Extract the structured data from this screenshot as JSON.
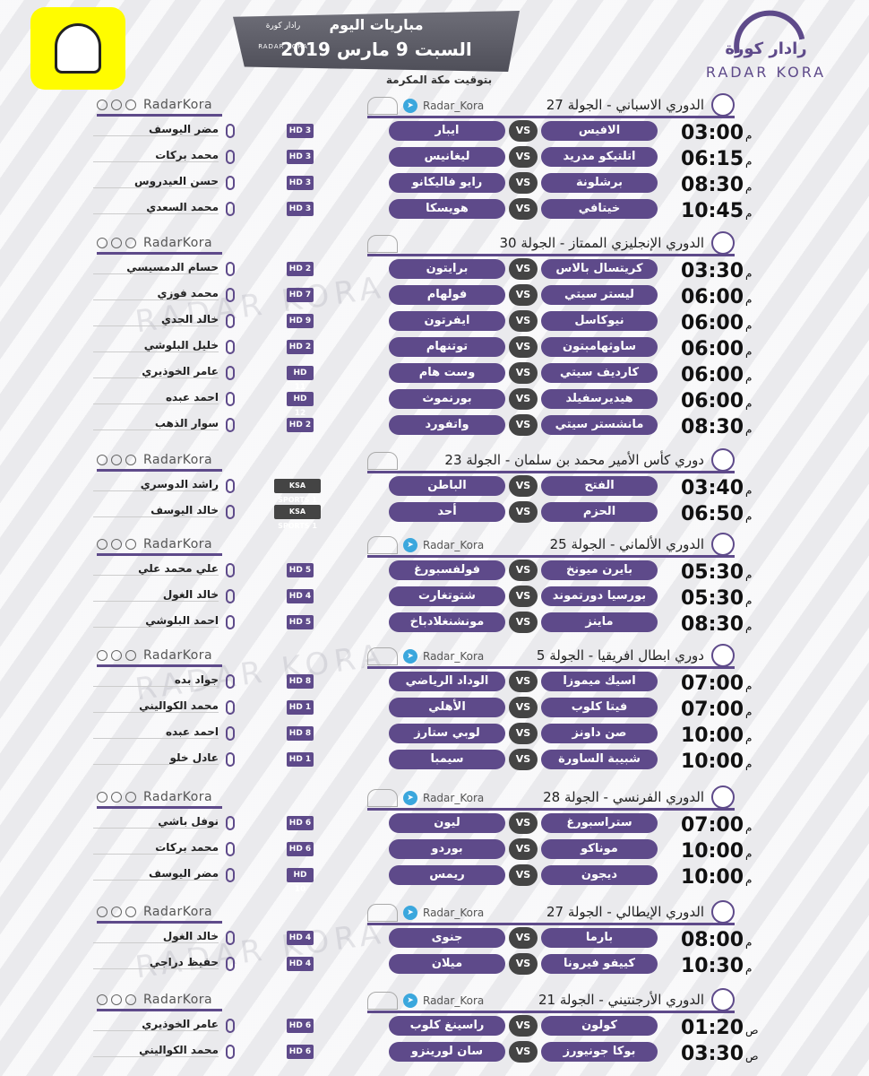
{
  "header": {
    "title": "مباريات اليوم",
    "date": "السبت 9 مارس 2019",
    "timezone": "بتوقيت مكة المكرمة",
    "brand_ar": "رادار كورة",
    "brand_en": "RADAR KORA",
    "banner_logo_ar": "رادار كورة",
    "banner_logo_en": "RADAR KORA"
  },
  "watermark": "RADAR KORA",
  "social_handle": "RadarKora",
  "sections": [
    {
      "league": "الدوري الاسباني - الجولة 27",
      "tag": "Radar_Kora",
      "matches": [
        {
          "time": "03:00",
          "suffix": "م",
          "home": "الافيس",
          "away": "ايبار",
          "channel": "HD 3",
          "commentator": "مضر اليوسف"
        },
        {
          "time": "06:15",
          "suffix": "م",
          "home": "اتلتيكو مدريد",
          "away": "ليغانيس",
          "channel": "HD 3",
          "commentator": "محمد بركات"
        },
        {
          "time": "08:30",
          "suffix": "م",
          "home": "برشلونة",
          "away": "رايو فاليكانو",
          "channel": "HD 3",
          "commentator": "حسن العيدروس"
        },
        {
          "time": "10:45",
          "suffix": "م",
          "home": "خيتافي",
          "away": "هويسكا",
          "channel": "HD 3",
          "commentator": "محمد السعدي"
        }
      ]
    },
    {
      "league": "الدوري الإنجليزي الممتاز - الجولة 30",
      "tag": "",
      "matches": [
        {
          "time": "03:30",
          "suffix": "م",
          "home": "كريتسال بالاس",
          "away": "برايتون",
          "channel": "HD 2",
          "commentator": "حسام الدمسيسي"
        },
        {
          "time": "06:00",
          "suffix": "م",
          "home": "ليستر سيتي",
          "away": "فولهام",
          "channel": "HD 7",
          "commentator": "محمد فوزي"
        },
        {
          "time": "06:00",
          "suffix": "م",
          "home": "نيوكاسل",
          "away": "ايفرتون",
          "channel": "HD 9",
          "commentator": "خالد الحدي"
        },
        {
          "time": "06:00",
          "suffix": "م",
          "home": "ساوثهامبتون",
          "away": "توتنهام",
          "channel": "HD 2",
          "commentator": "خليل البلوشي"
        },
        {
          "time": "06:00",
          "suffix": "م",
          "home": "كارديف سيتي",
          "away": "وست هام",
          "channel": "HD 11",
          "commentator": "عامر الخوذيري"
        },
        {
          "time": "06:00",
          "suffix": "م",
          "home": "هيديرسفيلد",
          "away": "بورنموث",
          "channel": "HD 12",
          "commentator": "احمد عبده"
        },
        {
          "time": "08:30",
          "suffix": "م",
          "home": "مانشستر سيتي",
          "away": "واتفورد",
          "channel": "HD 2",
          "commentator": "سوار الذهب"
        }
      ]
    },
    {
      "league": "دوري كأس الأمير محمد بن سلمان - الجولة 23",
      "tag": "",
      "matches": [
        {
          "time": "03:40",
          "suffix": "م",
          "home": "الفتح",
          "away": "الباطن",
          "channel": "KSA SPORTS 1",
          "commentator": "راشد الدوسري"
        },
        {
          "time": "06:50",
          "suffix": "م",
          "home": "الحزم",
          "away": "أحد",
          "channel": "KSA SPORTS 1",
          "commentator": "خالد اليوسف"
        }
      ]
    },
    {
      "league": "الدوري الألماني - الجولة 25",
      "tag": "Radar_Kora",
      "matches": [
        {
          "time": "05:30",
          "suffix": "م",
          "home": "بايرن ميونخ",
          "away": "فولفسبورغ",
          "channel": "HD 5",
          "commentator": "علي محمد علي"
        },
        {
          "time": "05:30",
          "suffix": "م",
          "home": "بورسيا دورتموند",
          "away": "شتوتغارت",
          "channel": "HD 4",
          "commentator": "خالد الغول"
        },
        {
          "time": "08:30",
          "suffix": "م",
          "home": "ماينز",
          "away": "مونشنغلادباخ",
          "channel": "HD 5",
          "commentator": "احمد البلوشي"
        }
      ]
    },
    {
      "league": "دوري ابطال افريقيا - الجولة 5",
      "tag": "Radar_Kora",
      "matches": [
        {
          "time": "07:00",
          "suffix": "م",
          "home": "اسيك ميموزا",
          "away": "الوداد الرياضي",
          "channel": "HD 8",
          "commentator": "جواد بده"
        },
        {
          "time": "07:00",
          "suffix": "م",
          "home": "فيتا كلوب",
          "away": "الأهلي",
          "channel": "HD 1",
          "commentator": "محمد الكواليني"
        },
        {
          "time": "10:00",
          "suffix": "م",
          "home": "صن داونز",
          "away": "لوبي ستارز",
          "channel": "HD 8",
          "commentator": "احمد عبده"
        },
        {
          "time": "10:00",
          "suffix": "م",
          "home": "شبيبة الساورة",
          "away": "سيمبا",
          "channel": "HD 1",
          "commentator": "عادل خلو"
        }
      ]
    },
    {
      "league": "الدوري الفرنسي - الجولة 28",
      "tag": "Radar_Kora",
      "matches": [
        {
          "time": "07:00",
          "suffix": "م",
          "home": "ستراسبورغ",
          "away": "ليون",
          "channel": "HD 6",
          "commentator": "نوفل باشي"
        },
        {
          "time": "10:00",
          "suffix": "م",
          "home": "موناكو",
          "away": "بوردو",
          "channel": "HD 6",
          "commentator": "محمد بركات"
        },
        {
          "time": "10:00",
          "suffix": "م",
          "home": "ديجون",
          "away": "ريمس",
          "channel": "HD 10",
          "commentator": "مضر اليوسف"
        }
      ]
    },
    {
      "league": "الدوري الإيطالي - الجولة 27",
      "tag": "Radar_Kora",
      "matches": [
        {
          "time": "08:00",
          "suffix": "م",
          "home": "بارما",
          "away": "جنوى",
          "channel": "HD 4",
          "commentator": "خالد الغول"
        },
        {
          "time": "10:30",
          "suffix": "م",
          "home": "كييفو فيرونا",
          "away": "ميلان",
          "channel": "HD 4",
          "commentator": "حفيظ دراجي"
        }
      ]
    },
    {
      "league": "الدوري الأرجنتيني - الجولة 21",
      "tag": "Radar_Kora",
      "matches": [
        {
          "time": "01:20",
          "suffix": "ص",
          "home": "كولون",
          "away": "راسينغ كلوب",
          "channel": "HD 6",
          "commentator": "عامر الخوذيري"
        },
        {
          "time": "03:30",
          "suffix": "ص",
          "home": "بوكا جونيورز",
          "away": "سان لورينزو",
          "channel": "HD 6",
          "commentator": "محمد الكواليني"
        }
      ]
    }
  ]
}
